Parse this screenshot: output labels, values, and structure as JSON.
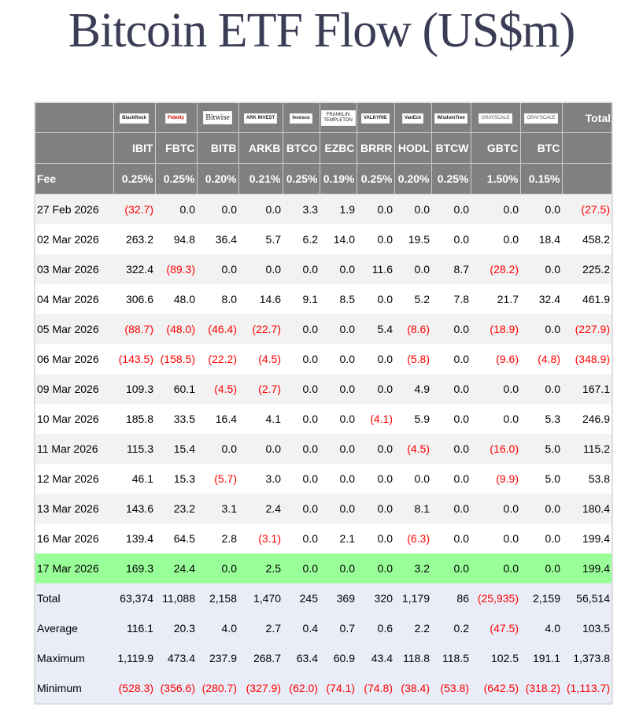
{
  "title": "Bitcoin ETF Flow (US$m)",
  "colors": {
    "header_bg": "#808080",
    "negative": "#ff0000",
    "highlight_row": "#99ff99",
    "summary_bg": "#e9edf7"
  },
  "columns": [
    {
      "issuer_logo": "BlackRock",
      "ticker": "IBIT",
      "fee": "0.25%"
    },
    {
      "issuer_logo": "Fidelity",
      "ticker": "FBTC",
      "fee": "0.25%"
    },
    {
      "issuer_logo": "Bitwise",
      "ticker": "BITB",
      "fee": "0.20%"
    },
    {
      "issuer_logo": "ARK INVEST",
      "ticker": "ARKB",
      "fee": "0.21%"
    },
    {
      "issuer_logo": "Invesco",
      "ticker": "BTCO",
      "fee": "0.25%"
    },
    {
      "issuer_logo": "FRANKLIN TEMPLETON",
      "ticker": "EZBC",
      "fee": "0.19%"
    },
    {
      "issuer_logo": "VALKYRIE",
      "ticker": "BRRR",
      "fee": "0.25%"
    },
    {
      "issuer_logo": "VanEck",
      "ticker": "HODL",
      "fee": "0.20%"
    },
    {
      "issuer_logo": "WisdomTree",
      "ticker": "BTCW",
      "fee": "0.25%"
    },
    {
      "issuer_logo": "GRAYSCALE",
      "ticker": "GBTC",
      "fee": "1.50%"
    },
    {
      "issuer_logo": "GRAYSCALE",
      "ticker": "BTC",
      "fee": "0.15%"
    }
  ],
  "total_label": "Total",
  "fee_label": "Fee",
  "rows": [
    {
      "date": "27 Feb 2026",
      "values": [
        "(32.7)",
        "0.0",
        "0.0",
        "0.0",
        "3.3",
        "1.9",
        "0.0",
        "0.0",
        "0.0",
        "0.0",
        "0.0",
        "(27.5)"
      ]
    },
    {
      "date": "02 Mar 2026",
      "values": [
        "263.2",
        "94.8",
        "36.4",
        "5.7",
        "6.2",
        "14.0",
        "0.0",
        "19.5",
        "0.0",
        "0.0",
        "18.4",
        "458.2"
      ]
    },
    {
      "date": "03 Mar 2026",
      "values": [
        "322.4",
        "(89.3)",
        "0.0",
        "0.0",
        "0.0",
        "0.0",
        "11.6",
        "0.0",
        "8.7",
        "(28.2)",
        "0.0",
        "225.2"
      ]
    },
    {
      "date": "04 Mar 2026",
      "values": [
        "306.6",
        "48.0",
        "8.0",
        "14.6",
        "9.1",
        "8.5",
        "0.0",
        "5.2",
        "7.8",
        "21.7",
        "32.4",
        "461.9"
      ]
    },
    {
      "date": "05 Mar 2026",
      "values": [
        "(88.7)",
        "(48.0)",
        "(46.4)",
        "(22.7)",
        "0.0",
        "0.0",
        "5.4",
        "(8.6)",
        "0.0",
        "(18.9)",
        "0.0",
        "(227.9)"
      ]
    },
    {
      "date": "06 Mar 2026",
      "values": [
        "(143.5)",
        "(158.5)",
        "(22.2)",
        "(4.5)",
        "0.0",
        "0.0",
        "0.0",
        "(5.8)",
        "0.0",
        "(9.6)",
        "(4.8)",
        "(348.9)"
      ]
    },
    {
      "date": "09 Mar 2026",
      "values": [
        "109.3",
        "60.1",
        "(4.5)",
        "(2.7)",
        "0.0",
        "0.0",
        "0.0",
        "4.9",
        "0.0",
        "0.0",
        "0.0",
        "167.1"
      ]
    },
    {
      "date": "10 Mar 2026",
      "values": [
        "185.8",
        "33.5",
        "16.4",
        "4.1",
        "0.0",
        "0.0",
        "(4.1)",
        "5.9",
        "0.0",
        "0.0",
        "5.3",
        "246.9"
      ]
    },
    {
      "date": "11 Mar 2026",
      "values": [
        "115.3",
        "15.4",
        "0.0",
        "0.0",
        "0.0",
        "0.0",
        "0.0",
        "(4.5)",
        "0.0",
        "(16.0)",
        "5.0",
        "115.2"
      ]
    },
    {
      "date": "12 Mar 2026",
      "values": [
        "46.1",
        "15.3",
        "(5.7)",
        "3.0",
        "0.0",
        "0.0",
        "0.0",
        "0.0",
        "0.0",
        "(9.9)",
        "5.0",
        "53.8"
      ]
    },
    {
      "date": "13 Mar 2026",
      "values": [
        "143.6",
        "23.2",
        "3.1",
        "2.4",
        "0.0",
        "0.0",
        "0.0",
        "8.1",
        "0.0",
        "0.0",
        "0.0",
        "180.4"
      ]
    },
    {
      "date": "16 Mar 2026",
      "values": [
        "139.4",
        "64.5",
        "2.8",
        "(3.1)",
        "0.0",
        "2.1",
        "0.0",
        "(6.3)",
        "0.0",
        "0.0",
        "0.0",
        "199.4"
      ]
    },
    {
      "date": "17 Mar 2026",
      "highlight": true,
      "values": [
        "169.3",
        "24.4",
        "0.0",
        "2.5",
        "0.0",
        "0.0",
        "0.0",
        "3.2",
        "0.0",
        "0.0",
        "0.0",
        "199.4"
      ]
    }
  ],
  "summary": [
    {
      "label": "Total",
      "values": [
        "63,374",
        "11,088",
        "2,158",
        "1,470",
        "245",
        "369",
        "320",
        "1,179",
        "86",
        "(25,935)",
        "2,159",
        "56,514"
      ]
    },
    {
      "label": "Average",
      "values": [
        "116.1",
        "20.3",
        "4.0",
        "2.7",
        "0.4",
        "0.7",
        "0.6",
        "2.2",
        "0.2",
        "(47.5)",
        "4.0",
        "103.5"
      ]
    },
    {
      "label": "Maximum",
      "values": [
        "1,119.9",
        "473.4",
        "237.9",
        "268.7",
        "63.4",
        "60.9",
        "43.4",
        "118.8",
        "118.5",
        "102.5",
        "191.1",
        "1,373.8"
      ]
    },
    {
      "label": "Minimum",
      "values": [
        "(528.3)",
        "(356.6)",
        "(280.7)",
        "(327.9)",
        "(62.0)",
        "(74.1)",
        "(74.8)",
        "(38.4)",
        "(53.8)",
        "(642.5)",
        "(318.2)",
        "(1,113.7)"
      ]
    }
  ]
}
